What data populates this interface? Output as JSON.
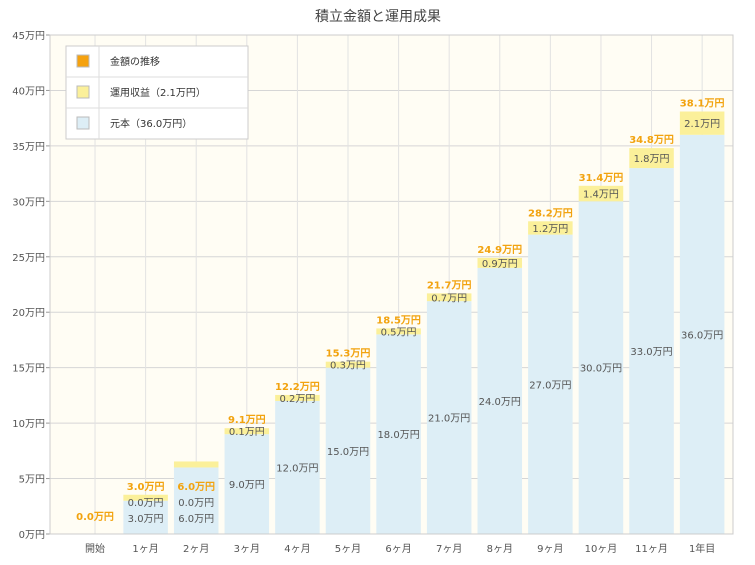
{
  "chart_data": {
    "type": "bar",
    "stacked": true,
    "title": "積立金額と運用成果",
    "categories": [
      "開始",
      "1ヶ月",
      "2ヶ月",
      "3ヶ月",
      "4ヶ月",
      "5ヶ月",
      "6ヶ月",
      "7ヶ月",
      "8ヶ月",
      "9ヶ月",
      "10ヶ月",
      "11ヶ月",
      "1年目"
    ],
    "y_ticks": [
      "0万円",
      "5万円",
      "10万円",
      "15万円",
      "20万円",
      "25万円",
      "30万円",
      "35万円",
      "40万円",
      "45万円"
    ],
    "ylim": [
      0,
      45
    ],
    "grid": true,
    "legend_position": "top-left",
    "legend": [
      {
        "label": "金額の推移",
        "color": "#f5a20f"
      },
      {
        "label": "運用収益（2.1万円）",
        "color": "#fbf09a"
      },
      {
        "label": "元本（36.0万円）",
        "color": "#ddeef6"
      }
    ],
    "series": [
      {
        "values": [
          0,
          3,
          6,
          9,
          12,
          15,
          18,
          21,
          24,
          27,
          30,
          33,
          36
        ],
        "labels": [
          "",
          "3.0万円",
          "6.0万円",
          "9.0万円",
          "12.0万円",
          "15.0万円",
          "18.0万円",
          "21.0万円",
          "24.0万円",
          "27.0万円",
          "30.0万円",
          "33.0万円",
          "36.0万円"
        ],
        "color": "#ddeef6"
      },
      {
        "values": [
          0,
          0,
          0,
          0.1,
          0.2,
          0.3,
          0.5,
          0.7,
          0.9,
          1.2,
          1.4,
          1.8,
          2.1
        ],
        "labels": [
          "",
          "0.0万円",
          "0.0万円",
          "0.1万円",
          "0.2万円",
          "0.3万円",
          "0.5万円",
          "0.7万円",
          "0.9万円",
          "1.2万円",
          "1.4万円",
          "1.8万円",
          "2.1万円"
        ],
        "color": "#fbf09a"
      }
    ],
    "totals": [
      0,
      3.0,
      6.0,
      9.1,
      12.2,
      15.3,
      18.5,
      21.7,
      24.9,
      28.2,
      31.4,
      34.8,
      38.1
    ],
    "total_labels": [
      "0.0万円",
      "3.0万円",
      "6.0万円",
      "9.1万円",
      "12.2万円",
      "15.3万円",
      "18.5万円",
      "21.7万円",
      "24.9万円",
      "28.2万円",
      "31.4万円",
      "34.8万円",
      "38.1万円"
    ]
  }
}
